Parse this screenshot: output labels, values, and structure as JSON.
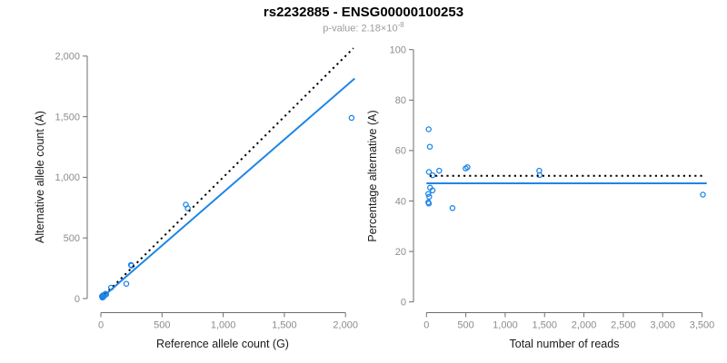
{
  "header": {
    "title": "rs2232885 - ENSG00000100253",
    "subtitle_base": "p-value: 2.18×10",
    "subtitle_exp": "-8"
  },
  "colors": {
    "point": "#1e86e5",
    "fit_line": "#1e86e5",
    "reference_line": "#000000",
    "axis": "#6e6e6e",
    "tick_label": "#8c8c8c",
    "axis_title": "#1a1a1a"
  },
  "chart_data": [
    {
      "name": "allele-count-scatter",
      "type": "scatter",
      "xlabel": "Reference allele count (G)",
      "ylabel": "Alternative allele count (A)",
      "xlim": [
        0,
        2000
      ],
      "ylim": [
        0,
        2000
      ],
      "x_ticks": [
        0,
        500,
        1000,
        1500,
        2000
      ],
      "x_tick_labels": [
        "0",
        "500",
        "1,000",
        "1,500",
        "2,000"
      ],
      "y_ticks": [
        0,
        500,
        1000,
        1500,
        2000
      ],
      "y_tick_labels": [
        "0",
        "500",
        "1,000",
        "1,500",
        "2,000"
      ],
      "grid": false,
      "legend": "none",
      "points": [
        [
          9,
          19
        ],
        [
          17,
          27
        ],
        [
          15,
          16
        ],
        [
          38,
          39
        ],
        [
          25,
          21
        ],
        [
          43,
          34
        ],
        [
          13,
          10
        ],
        [
          21,
          15
        ],
        [
          14,
          9
        ],
        [
          18,
          12
        ],
        [
          83,
          90
        ],
        [
          208,
          122
        ],
        [
          246,
          278
        ],
        [
          250,
          272
        ],
        [
          695,
          775
        ],
        [
          710,
          745
        ],
        [
          2050,
          1490
        ]
      ],
      "lines": [
        {
          "name": "identity-line",
          "style": "dotted",
          "color": "#000000",
          "x": [
            0,
            2065
          ],
          "y": [
            0,
            2065
          ]
        },
        {
          "name": "fit-line",
          "style": "solid",
          "color": "#1e86e5",
          "x": [
            0,
            2075
          ],
          "y": [
            0,
            1815
          ]
        }
      ]
    },
    {
      "name": "percentage-alternative-scatter",
      "type": "scatter",
      "xlabel": "Total number of reads",
      "ylabel": "Percentage alternative (A)",
      "xlim": [
        0,
        3500
      ],
      "ylim": [
        0,
        100
      ],
      "x_ticks": [
        0,
        500,
        1000,
        1500,
        2000,
        2500,
        3000,
        3500
      ],
      "x_tick_labels": [
        "0",
        "500",
        "1,000",
        "1,500",
        "2,000",
        "2,500",
        "3,000",
        "3,500"
      ],
      "y_ticks": [
        0,
        20,
        40,
        60,
        80,
        100
      ],
      "y_tick_labels": [
        "0",
        "20",
        "40",
        "60",
        "80",
        "100"
      ],
      "grid": false,
      "legend": "none",
      "points": [
        [
          28,
          68.4
        ],
        [
          43,
          61.5
        ],
        [
          31,
          51.5
        ],
        [
          77,
          50.2
        ],
        [
          46,
          45.3
        ],
        [
          77,
          44.2
        ],
        [
          23,
          42.8
        ],
        [
          35,
          41.7
        ],
        [
          23,
          39.5
        ],
        [
          30,
          39.0
        ],
        [
          162,
          52.0
        ],
        [
          330,
          37.2
        ],
        [
          497,
          52.9
        ],
        [
          521,
          53.4
        ],
        [
          1432,
          52.0
        ],
        [
          1437,
          50.3
        ],
        [
          3512,
          42.5
        ]
      ],
      "lines": [
        {
          "name": "expected-50pct-line",
          "style": "dotted",
          "color": "#000000",
          "x": [
            40,
            3540
          ],
          "y": [
            50,
            50
          ]
        },
        {
          "name": "fit-line",
          "style": "solid",
          "color": "#1e86e5",
          "x": [
            0,
            3560
          ],
          "y": [
            47,
            47
          ]
        }
      ]
    }
  ]
}
